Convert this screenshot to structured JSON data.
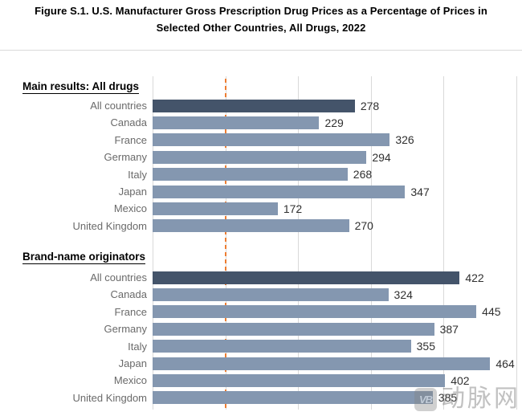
{
  "figure": {
    "title_line1": "Figure S.1. U.S. Manufacturer Gross Prescription Drug Prices as a Percentage of Prices in",
    "title_line2": "Selected Other Countries, All Drugs, 2022"
  },
  "watermark": {
    "logo_text": "VB",
    "text": "动脉网"
  },
  "chart_data": {
    "type": "bar",
    "orientation": "horizontal",
    "title": "Figure S.1. U.S. Manufacturer Gross Prescription Drug Prices as a Percentage of Prices in Selected Other Countries, All Drugs, 2022",
    "xlabel": "",
    "ylabel": "",
    "xlim": [
      0,
      500
    ],
    "gridline_interval": 100,
    "grid": true,
    "axis_tick_labels_visible": false,
    "data_labels_visible": true,
    "reference_line": {
      "value": 100,
      "style": "dashed",
      "color": "#ED7D31"
    },
    "highlight_category": "All countries",
    "colors": {
      "highlight_bar": "#44546A",
      "default_bar": "#8497B0",
      "gridline": "#D9D9D9",
      "reference_line": "#ED7D31",
      "category_label": "#6A6A6A",
      "value_label": "#303030"
    },
    "groups": [
      {
        "label": "Main results: All drugs",
        "categories": [
          "All countries",
          "Canada",
          "France",
          "Germany",
          "Italy",
          "Japan",
          "Mexico",
          "United Kingdom"
        ],
        "values": [
          278,
          229,
          326,
          294,
          268,
          347,
          172,
          270
        ]
      },
      {
        "label": "Brand-name originators",
        "categories": [
          "All countries",
          "Canada",
          "France",
          "Germany",
          "Italy",
          "Japan",
          "Mexico",
          "United Kingdom"
        ],
        "values": [
          422,
          324,
          445,
          387,
          355,
          464,
          402,
          385
        ]
      }
    ]
  }
}
